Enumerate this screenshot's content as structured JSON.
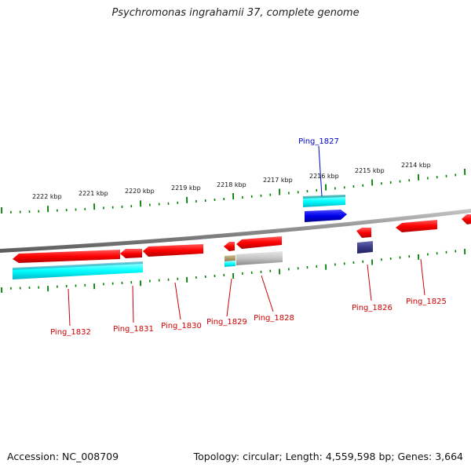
{
  "header": {
    "title": "Psychromonas ingrahamii 37, complete genome"
  },
  "footer": {
    "accession": "Accession: NC_008709",
    "topology": "Topology: circular; Length: 4,559,598 bp; Genes: 3,664"
  },
  "axis": {
    "ticks": [
      "2222 kbp",
      "2221 kbp",
      "2220 kbp",
      "2219 kbp",
      "2218 kbp",
      "2217 kbp",
      "2216 kbp",
      "2215 kbp",
      "2214 kbp"
    ]
  },
  "genes": {
    "labels": [
      "Ping_1827",
      "Ping_1832",
      "Ping_1831",
      "Ping_1830",
      "Ping_1829",
      "Ping_1828",
      "Ping_1826",
      "Ping_1825"
    ]
  },
  "colors": {
    "gene_red": "#ff0000",
    "gene_cyan": "#00ffff",
    "gene_blue": "#0000ee",
    "gene_navy": "#3a3a8a",
    "gene_gray": "#bbbbbb",
    "gene_olive": "#b5a070",
    "tick_green": "#008000",
    "backbone": "#888888",
    "label_red": "#cc0000",
    "label_blue": "#0000cc"
  }
}
